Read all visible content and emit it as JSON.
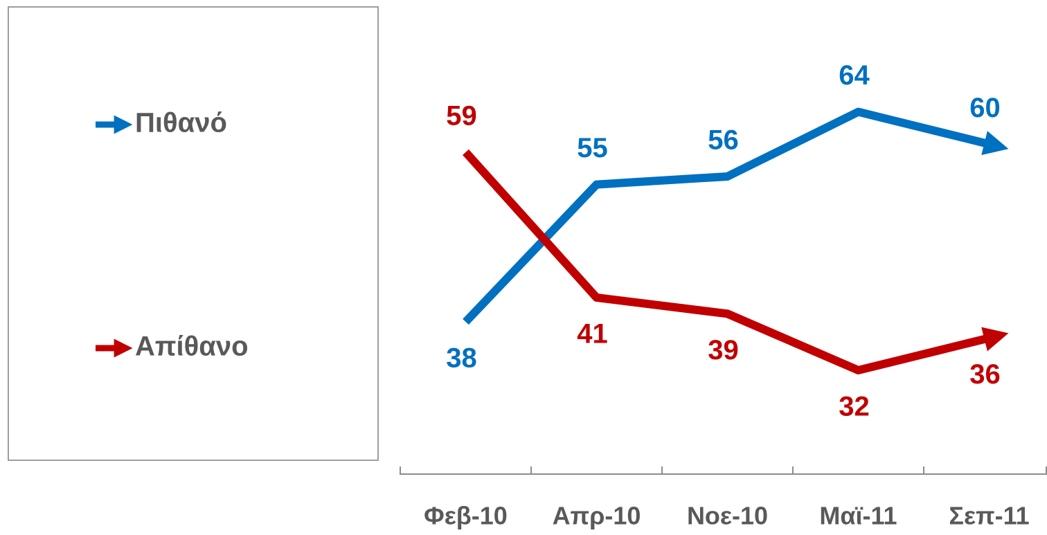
{
  "chart_data": {
    "type": "line",
    "categories": [
      "Φεβ-10",
      "Απρ-10",
      "Νοε-10",
      "Μαϊ-11",
      "Σεπ-11"
    ],
    "series": [
      {
        "name": "Πιθανό",
        "color": "#0070c0",
        "values": [
          38,
          55,
          56,
          64,
          60
        ]
      },
      {
        "name": "Απίθανο",
        "color": "#c00000",
        "values": [
          59,
          41,
          39,
          32,
          36
        ]
      }
    ],
    "ylim": [
      20,
      70
    ],
    "legend": "left",
    "grid": false
  }
}
